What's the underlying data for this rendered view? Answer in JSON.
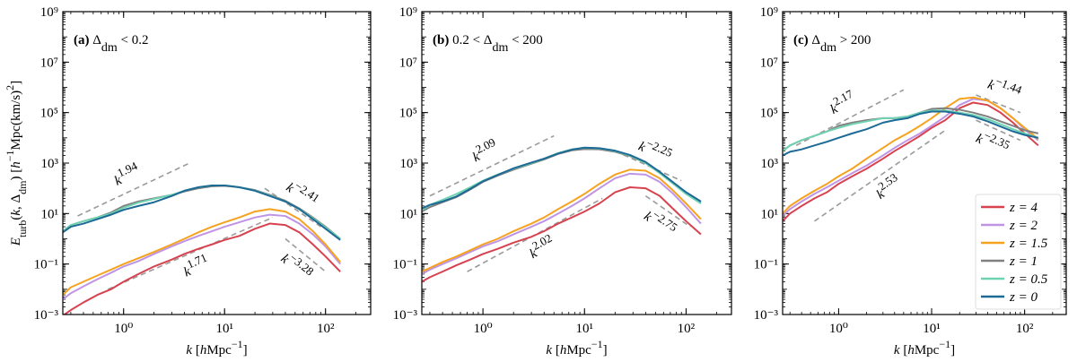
{
  "chart_data": [
    {
      "type": "line",
      "log_x": true,
      "log_y": true,
      "panel_label": [
        {
          "text": "(a)",
          "bold": true
        },
        {
          "text": " Δ"
        },
        {
          "text": "dm",
          "shift": "sub"
        },
        {
          "text": " < 0.2"
        }
      ],
      "xlabel": [
        {
          "text": "k",
          "italic": true
        },
        {
          "text": " ["
        },
        {
          "text": "h",
          "italic": true
        },
        {
          "text": "Mpc"
        },
        {
          "text": "−1",
          "shift": "super"
        },
        {
          "text": "]"
        }
      ],
      "ylabel": [
        {
          "text": "E",
          "italic": true
        },
        {
          "text": "turb",
          "shift": "sub"
        },
        {
          "text": "("
        },
        {
          "text": "k",
          "italic": true
        },
        {
          "text": ", Δ"
        },
        {
          "text": "dm",
          "shift": "sub"
        },
        {
          "text": ") ["
        },
        {
          "text": "h",
          "italic": true
        },
        {
          "text": "−1",
          "shift": "super"
        },
        {
          "text": "Mpc(km/s)"
        },
        {
          "text": "2",
          "shift": "super"
        },
        {
          "text": "]"
        }
      ],
      "xlim": [
        0.25,
        280
      ],
      "ylim": [
        0.001,
        1000000000
      ],
      "xticks": [
        {
          "value": 1,
          "label": "10⁰"
        },
        {
          "value": 10,
          "label": "10¹"
        },
        {
          "value": 100,
          "label": "10²"
        }
      ],
      "yticks": [
        {
          "value": 0.001,
          "label": "10⁻³"
        },
        {
          "value": 0.1,
          "label": "10⁻¹"
        },
        {
          "value": 10,
          "label": "10¹"
        },
        {
          "value": 1000,
          "label": "10³"
        },
        {
          "value": 100000,
          "label": "10⁵"
        },
        {
          "value": 10000000,
          "label": "10⁷"
        },
        {
          "value": 1000000000,
          "label": "10⁹"
        }
      ],
      "x": [
        0.25,
        0.3,
        0.4,
        0.55,
        0.75,
        1,
        1.4,
        2,
        3,
        4,
        5.5,
        7.5,
        10,
        14,
        20,
        28,
        40,
        55,
        75,
        100,
        140
      ],
      "series": [
        {
          "name": "z = 4",
          "color": "#d7424f",
          "values": [
            0.0009,
            0.0015,
            0.003,
            0.006,
            0.01,
            0.02,
            0.04,
            0.08,
            0.15,
            0.25,
            0.4,
            0.6,
            0.9,
            1.3,
            2.5,
            4,
            3.5,
            1.8,
            0.6,
            0.2,
            0.05
          ]
        },
        {
          "name": "z = 2",
          "color": "#bf94e4",
          "values": [
            0.004,
            0.007,
            0.013,
            0.025,
            0.045,
            0.08,
            0.13,
            0.25,
            0.5,
            0.8,
            1.3,
            2,
            3,
            4.5,
            7,
            9,
            8,
            4,
            1.5,
            0.5,
            0.1
          ]
        },
        {
          "name": "z = 1.5",
          "color": "#f5a31f",
          "values": [
            0.006,
            0.012,
            0.02,
            0.035,
            0.06,
            0.1,
            0.17,
            0.3,
            0.6,
            1,
            1.8,
            3,
            4.5,
            7,
            12,
            15,
            12,
            6,
            2,
            0.6,
            0.12
          ]
        },
        {
          "name": "z = 1",
          "color": "#808080",
          "values": [
            2,
            3.5,
            5,
            7,
            11,
            20,
            30,
            40,
            55,
            75,
            100,
            120,
            125,
            110,
            85,
            55,
            32,
            16,
            7,
            3,
            1
          ]
        },
        {
          "name": "z = 0.5",
          "color": "#6fd3b2",
          "values": [
            2,
            3.5,
            5,
            7,
            10,
            17,
            27,
            38,
            55,
            80,
            110,
            130,
            130,
            110,
            82,
            52,
            30,
            15,
            6.5,
            2.8,
            1
          ]
        },
        {
          "name": "z = 0",
          "color": "#1d6a96",
          "values": [
            1.8,
            3,
            4,
            6,
            9,
            14,
            20,
            28,
            50,
            80,
            110,
            130,
            130,
            110,
            80,
            50,
            30,
            15,
            6,
            2.5,
            0.9
          ]
        }
      ],
      "annotations": [
        {
          "label": [
            {
              "text": "k",
              "italic": true
            },
            {
              "text": "1.94",
              "shift": "super"
            }
          ],
          "line_x": [
            0.35,
            4.5
          ],
          "line_y": [
            8,
            1000
          ],
          "label_side": "above"
        },
        {
          "label": [
            {
              "text": "k",
              "italic": true
            },
            {
              "text": "−2.41",
              "shift": "super"
            }
          ],
          "line_x": [
            25,
            90
          ],
          "line_y": [
            100,
            3
          ],
          "label_side": "above"
        },
        {
          "label": [
            {
              "text": "k",
              "italic": true
            },
            {
              "text": "1.71",
              "shift": "super"
            }
          ],
          "line_x": [
            0.7,
            30
          ],
          "line_y": [
            0.01,
            7
          ],
          "label_side": "below"
        },
        {
          "label": [
            {
              "text": "k",
              "italic": true
            },
            {
              "text": "−3.28",
              "shift": "super"
            }
          ],
          "line_x": [
            40,
            100
          ],
          "line_y": [
            1,
            0.05
          ],
          "label_side": "below"
        }
      ]
    },
    {
      "type": "line",
      "log_x": true,
      "log_y": true,
      "panel_label": [
        {
          "text": "(b)",
          "bold": true
        },
        {
          "text": " 0.2 < Δ"
        },
        {
          "text": "dm",
          "shift": "sub"
        },
        {
          "text": " < 200"
        }
      ],
      "xlabel": [
        {
          "text": "k",
          "italic": true
        },
        {
          "text": " ["
        },
        {
          "text": "h",
          "italic": true
        },
        {
          "text": "Mpc"
        },
        {
          "text": "−1",
          "shift": "super"
        },
        {
          "text": "]"
        }
      ],
      "xlim": [
        0.25,
        280
      ],
      "ylim": [
        0.001,
        1000000000
      ],
      "xticks": [
        {
          "value": 1,
          "label": "10⁰"
        },
        {
          "value": 10,
          "label": "10¹"
        },
        {
          "value": 100,
          "label": "10²"
        }
      ],
      "yticks": [
        {
          "value": 0.001,
          "label": "10⁻³"
        },
        {
          "value": 0.1,
          "label": "10⁻¹"
        },
        {
          "value": 10,
          "label": "10¹"
        },
        {
          "value": 1000,
          "label": "10³"
        },
        {
          "value": 100000,
          "label": "10⁵"
        },
        {
          "value": 10000000,
          "label": "10⁷"
        },
        {
          "value": 1000000000,
          "label": "10⁹"
        }
      ],
      "x": [
        0.25,
        0.3,
        0.4,
        0.55,
        0.75,
        1,
        1.4,
        2,
        3,
        4,
        5.5,
        7.5,
        10,
        14,
        20,
        28,
        40,
        55,
        75,
        100,
        140
      ],
      "series": [
        {
          "name": "z = 4",
          "color": "#d7424f",
          "values": [
            0.02,
            0.03,
            0.05,
            0.09,
            0.15,
            0.25,
            0.4,
            0.7,
            1.2,
            2,
            4,
            7,
            12,
            25,
            70,
            110,
            100,
            50,
            15,
            5,
            1.5
          ]
        },
        {
          "name": "z = 2",
          "color": "#bf94e4",
          "values": [
            0.04,
            0.06,
            0.1,
            0.17,
            0.3,
            0.5,
            0.8,
            1.5,
            3,
            5,
            10,
            20,
            40,
            100,
            250,
            380,
            350,
            180,
            60,
            18,
            4
          ]
        },
        {
          "name": "z = 1.5",
          "color": "#f5a31f",
          "values": [
            0.05,
            0.07,
            0.12,
            0.2,
            0.35,
            0.6,
            1,
            2,
            4,
            7,
            15,
            30,
            60,
            150,
            350,
            550,
            500,
            250,
            80,
            25,
            6
          ]
        },
        {
          "name": "z = 1",
          "color": "#808080",
          "values": [
            12,
            18,
            28,
            45,
            90,
            180,
            320,
            550,
            950,
            1400,
            2300,
            3200,
            3600,
            3500,
            2800,
            1900,
            1000,
            420,
            160,
            65,
            28
          ]
        },
        {
          "name": "z = 0.5",
          "color": "#6fd3b2",
          "values": [
            14,
            22,
            35,
            60,
            110,
            200,
            350,
            600,
            1000,
            1500,
            2500,
            3500,
            4000,
            3800,
            3000,
            2000,
            1000,
            400,
            150,
            60,
            25
          ]
        },
        {
          "name": "z = 0",
          "color": "#1d6a96",
          "values": [
            16,
            22,
            30,
            48,
            95,
            190,
            340,
            620,
            1050,
            1500,
            2400,
            3400,
            4100,
            3900,
            3100,
            2100,
            1100,
            450,
            170,
            70,
            30
          ]
        }
      ],
      "annotations": [
        {
          "label": [
            {
              "text": "k",
              "italic": true
            },
            {
              "text": "2.09",
              "shift": "super"
            }
          ],
          "line_x": [
            0.3,
            5
          ],
          "line_y": [
            50,
            12000
          ],
          "label_side": "above"
        },
        {
          "label": [
            {
              "text": "k",
              "italic": true
            },
            {
              "text": "−2.25",
              "shift": "super"
            }
          ],
          "line_x": [
            20,
            90
          ],
          "line_y": [
            3000,
            200
          ],
          "label_side": "above"
        },
        {
          "label": [
            {
              "text": "k",
              "italic": true
            },
            {
              "text": "2.02",
              "shift": "super"
            }
          ],
          "line_x": [
            0.7,
            15
          ],
          "line_y": [
            0.05,
            40
          ],
          "label_side": "below"
        },
        {
          "label": [
            {
              "text": "k",
              "italic": true
            },
            {
              "text": "−2.75",
              "shift": "super"
            }
          ],
          "line_x": [
            40,
            110
          ],
          "line_y": [
            50,
            3
          ],
          "label_side": "below"
        }
      ]
    },
    {
      "type": "line",
      "log_x": true,
      "log_y": true,
      "panel_label": [
        {
          "text": "(c)",
          "bold": true
        },
        {
          "text": " Δ"
        },
        {
          "text": "dm",
          "shift": "sub"
        },
        {
          "text": " > 200"
        }
      ],
      "xlabel": [
        {
          "text": "k",
          "italic": true
        },
        {
          "text": " ["
        },
        {
          "text": "h",
          "italic": true
        },
        {
          "text": "Mpc"
        },
        {
          "text": "−1",
          "shift": "super"
        },
        {
          "text": "]"
        }
      ],
      "xlim": [
        0.25,
        280
      ],
      "ylim": [
        0.001,
        1000000000
      ],
      "xticks": [
        {
          "value": 1,
          "label": "10⁰"
        },
        {
          "value": 10,
          "label": "10¹"
        },
        {
          "value": 100,
          "label": "10²"
        }
      ],
      "yticks": [
        {
          "value": 0.001,
          "label": "10⁻³"
        },
        {
          "value": 0.1,
          "label": "10⁻¹"
        },
        {
          "value": 10,
          "label": "10¹"
        },
        {
          "value": 1000,
          "label": "10³"
        },
        {
          "value": 100000,
          "label": "10⁵"
        },
        {
          "value": 10000000,
          "label": "10⁷"
        },
        {
          "value": 1000000000,
          "label": "10⁹"
        }
      ],
      "x": [
        0.25,
        0.3,
        0.4,
        0.55,
        0.75,
        1,
        1.4,
        2,
        3,
        4,
        5.5,
        7.5,
        10,
        14,
        20,
        28,
        40,
        55,
        75,
        100,
        140
      ],
      "legend": "lower right",
      "series": [
        {
          "name": "z = 4",
          "color": "#d7424f",
          "values": [
            5,
            10,
            20,
            40,
            70,
            150,
            300,
            600,
            1500,
            3000,
            6000,
            12000,
            25000,
            50000,
            150000,
            250000,
            200000,
            100000,
            40000,
            15000,
            5000
          ]
        },
        {
          "name": "z = 2",
          "color": "#bf94e4",
          "values": [
            8,
            15,
            30,
            60,
            110,
            200,
            400,
            800,
            2000,
            4000,
            8000,
            15000,
            30000,
            70000,
            200000,
            350000,
            300000,
            150000,
            60000,
            22000,
            8000
          ]
        },
        {
          "name": "z = 1.5",
          "color": "#f5a31f",
          "values": [
            10,
            20,
            40,
            80,
            150,
            300,
            600,
            1500,
            4000,
            8000,
            15000,
            30000,
            60000,
            150000,
            350000,
            400000,
            300000,
            150000,
            60000,
            25000,
            9000
          ]
        },
        {
          "name": "z = 1",
          "color": "#808080",
          "values": [
            3000,
            5000,
            8000,
            12000,
            18000,
            30000,
            40000,
            50000,
            60000,
            60000,
            70000,
            100000,
            140000,
            150000,
            130000,
            100000,
            70000,
            45000,
            30000,
            20000,
            15000
          ]
        },
        {
          "name": "z = 0.5",
          "color": "#6fd3b2",
          "values": [
            3000,
            5000,
            8000,
            12000,
            18000,
            25000,
            35000,
            45000,
            60000,
            60000,
            70000,
            100000,
            120000,
            120000,
            100000,
            80000,
            55000,
            35000,
            22000,
            15000,
            10000
          ]
        },
        {
          "name": "z = 0",
          "color": "#1d6a96",
          "values": [
            2000,
            2800,
            3500,
            5000,
            7000,
            10000,
            15000,
            22000,
            40000,
            50000,
            60000,
            90000,
            110000,
            110000,
            90000,
            70000,
            45000,
            28000,
            18000,
            13000,
            10000
          ]
        }
      ],
      "annotations": [
        {
          "label": [
            {
              "text": "k",
              "italic": true
            },
            {
              "text": "2.17",
              "shift": "super"
            }
          ],
          "line_x": [
            0.35,
            5
          ],
          "line_y": [
            5000,
            800000
          ],
          "label_side": "above"
        },
        {
          "label": [
            {
              "text": "k",
              "italic": true
            },
            {
              "text": "−1.44",
              "shift": "super"
            }
          ],
          "line_x": [
            30,
            90
          ],
          "line_y": [
            500000,
            100000
          ],
          "label_side": "above"
        },
        {
          "label": [
            {
              "text": "k",
              "italic": true
            },
            {
              "text": "2.53",
              "shift": "super"
            }
          ],
          "line_x": [
            0.55,
            14
          ],
          "line_y": [
            5,
            20000
          ],
          "label_side": "below"
        },
        {
          "label": [
            {
              "text": "k",
              "italic": true
            },
            {
              "text": "−2.35",
              "shift": "super"
            }
          ],
          "line_x": [
            30,
            90
          ],
          "line_y": [
            50000,
            8000
          ],
          "label_side": "below"
        }
      ]
    }
  ]
}
